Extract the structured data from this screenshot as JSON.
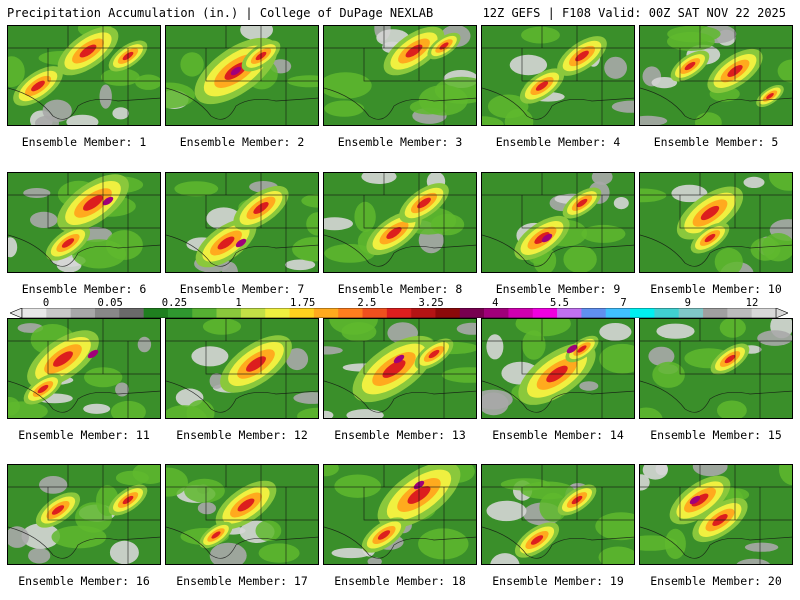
{
  "header": {
    "title_left": "Precipitation Accumulation (in.) | College of DuPage NEXLAB",
    "title_right": "12Z GEFS | F108 Valid: 00Z SAT NOV 22 2025"
  },
  "colorbar": {
    "labels": [
      "0",
      "0.05",
      "0.25",
      "1",
      "1.75",
      "2.5",
      "3.25",
      "4",
      "5.5",
      "7",
      "9",
      "12"
    ],
    "colors": [
      "#e8e8e8",
      "#c8c8c8",
      "#a8a8a8",
      "#888888",
      "#6a6a6a",
      "#1f7f1f",
      "#2f972f",
      "#55b032",
      "#8ac83c",
      "#c3e046",
      "#f0f040",
      "#ffd21e",
      "#ffaa1e",
      "#ff7e1e",
      "#f0501e",
      "#dc1e1e",
      "#b41414",
      "#8c0a0a",
      "#780050",
      "#a0007a",
      "#d000b0",
      "#f000e0",
      "#c070f0",
      "#6090f0",
      "#40c0ff",
      "#00f0f0",
      "#40d0d0",
      "#80c8c8",
      "#a0a0a0",
      "#bcbcbc",
      "#d8d8d8"
    ]
  },
  "panels": [
    {
      "label": "Ensemble Member: 1"
    },
    {
      "label": "Ensemble Member: 2"
    },
    {
      "label": "Ensemble Member: 3"
    },
    {
      "label": "Ensemble Member: 4"
    },
    {
      "label": "Ensemble Member: 5"
    },
    {
      "label": "Ensemble Member: 6"
    },
    {
      "label": "Ensemble Member: 7"
    },
    {
      "label": "Ensemble Member: 8"
    },
    {
      "label": "Ensemble Member: 9"
    },
    {
      "label": "Ensemble Member: 10"
    },
    {
      "label": "Ensemble Member: 11"
    },
    {
      "label": "Ensemble Member: 12"
    },
    {
      "label": "Ensemble Member: 13"
    },
    {
      "label": "Ensemble Member: 14"
    },
    {
      "label": "Ensemble Member: 15"
    },
    {
      "label": "Ensemble Member: 16"
    },
    {
      "label": "Ensemble Member: 17"
    },
    {
      "label": "Ensemble Member: 18"
    },
    {
      "label": "Ensemble Member: 19"
    },
    {
      "label": "Ensemble Member: 20"
    }
  ]
}
